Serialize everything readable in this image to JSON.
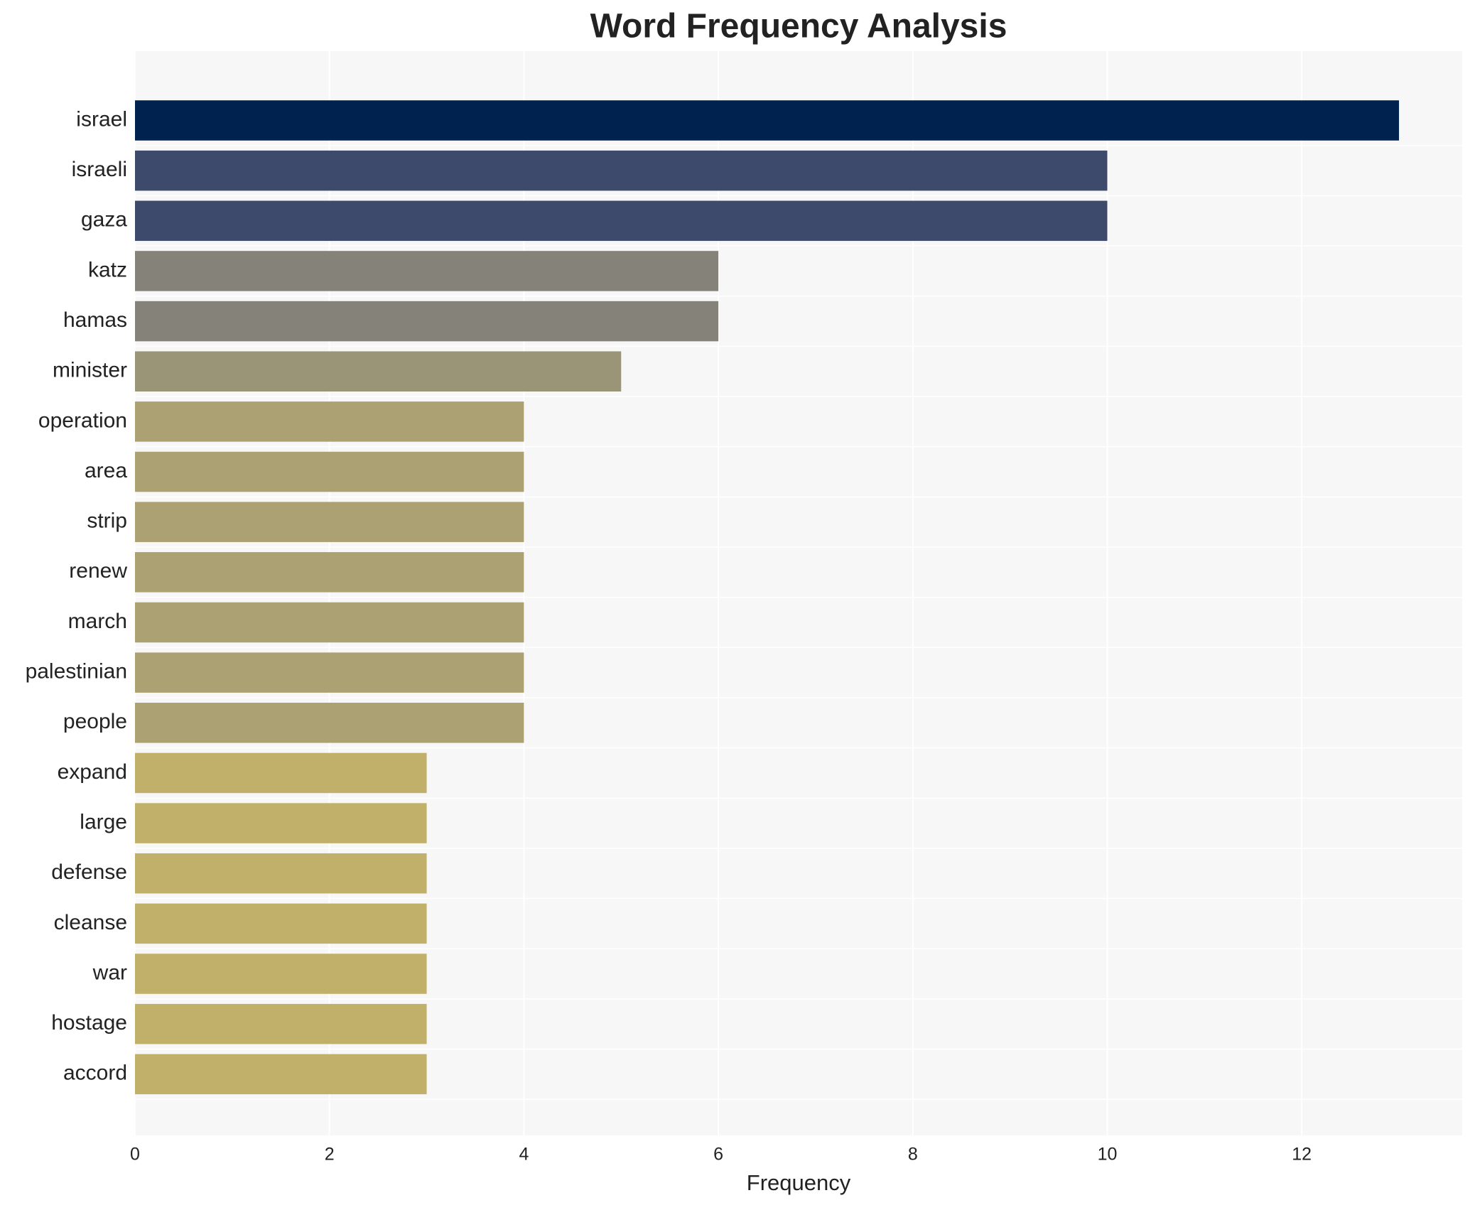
{
  "chart_data": {
    "type": "barh",
    "title": "Word Frequency Analysis",
    "x_label": "Frequency",
    "categories": [
      "israel",
      "israeli",
      "gaza",
      "katz",
      "hamas",
      "minister",
      "operation",
      "area",
      "strip",
      "renew",
      "march",
      "palestinian",
      "people",
      "expand",
      "large",
      "defense",
      "cleanse",
      "war",
      "hostage",
      "accord"
    ],
    "values": [
      13,
      10,
      10,
      6,
      6,
      5,
      4,
      4,
      4,
      4,
      4,
      4,
      4,
      3,
      3,
      3,
      3,
      3,
      3,
      3
    ],
    "colors": [
      "#00224e",
      "#3d4a6b",
      "#3d4a6b",
      "#858279",
      "#858279",
      "#9a9577",
      "#aba172",
      "#aba172",
      "#aba172",
      "#aba172",
      "#aba172",
      "#aba172",
      "#aba172",
      "#c1b06a",
      "#c1b06a",
      "#c1b06a",
      "#c1b06a",
      "#c1b06a",
      "#c1b06a",
      "#c1b06a"
    ],
    "xlim": [
      0,
      13.65
    ],
    "xticks": [
      0,
      2,
      4,
      6,
      8,
      10,
      12
    ],
    "grid": true
  }
}
